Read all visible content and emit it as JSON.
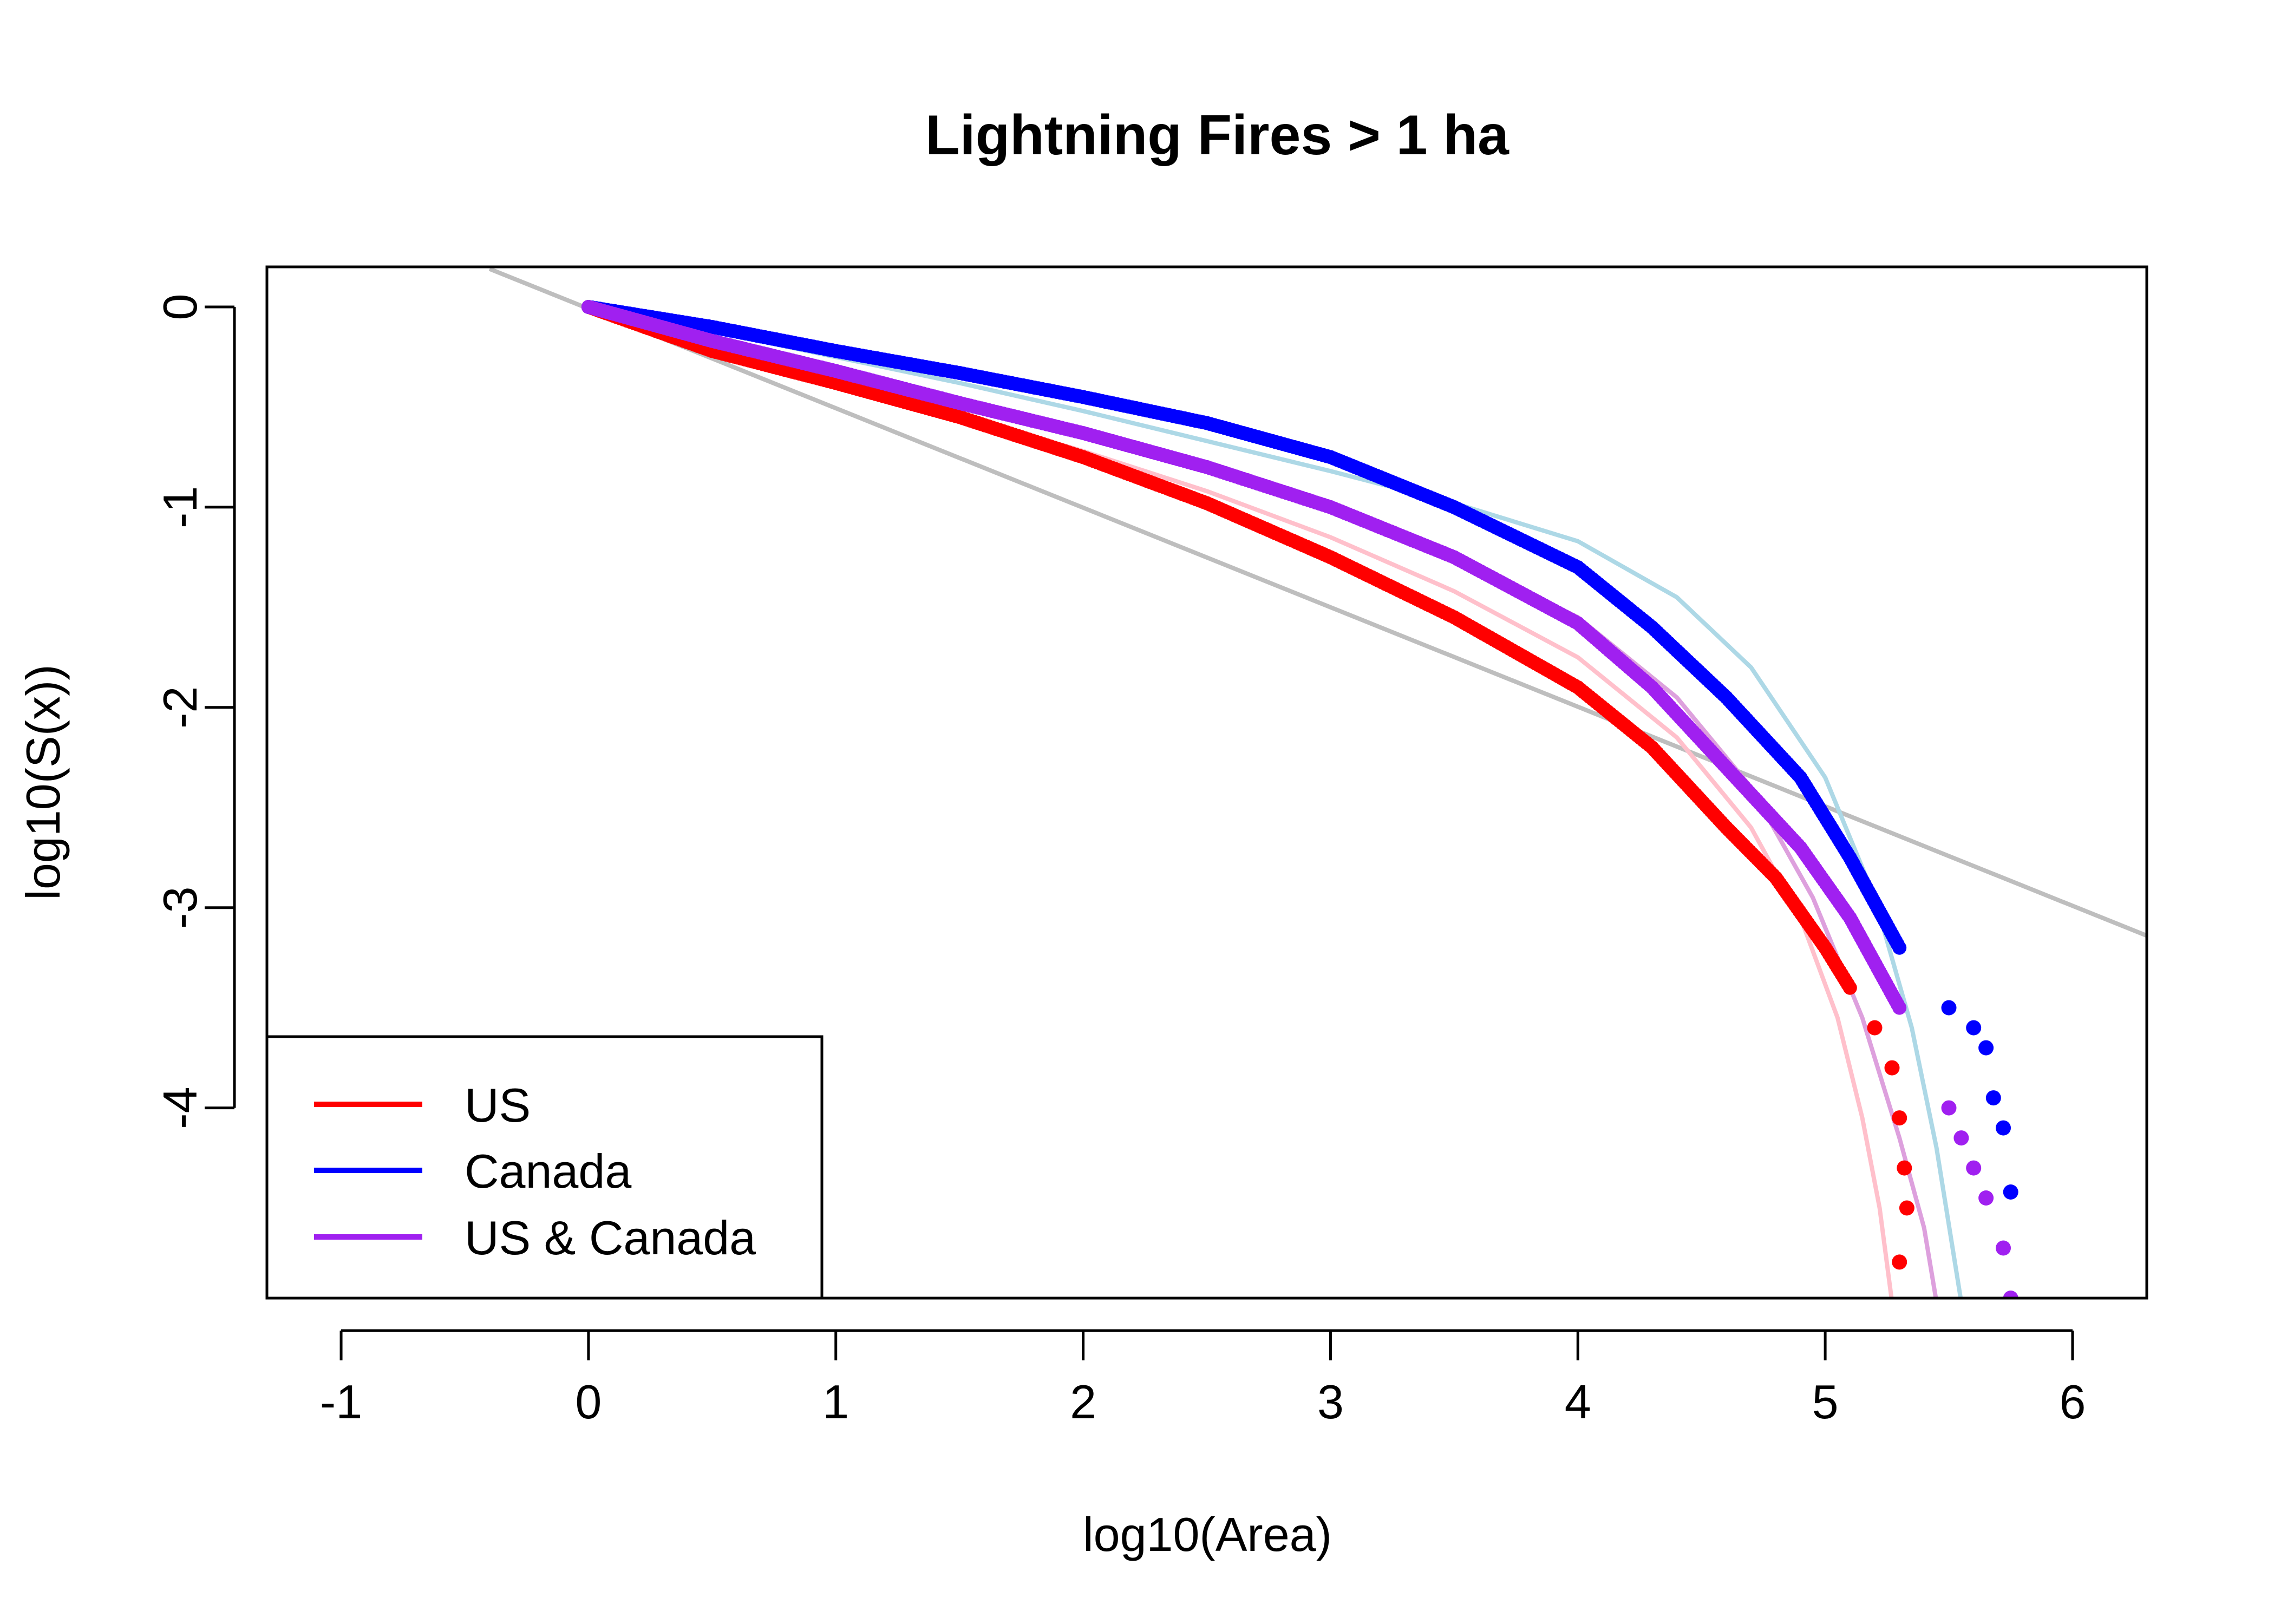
{
  "chart_data": {
    "type": "scatter",
    "title": "Lightning Fires > 1 ha",
    "xlabel": "log10(Area)",
    "ylabel": "log10(S(x))",
    "xlim": [
      -1.3,
      6.3
    ],
    "ylim": [
      -4.95,
      0.2
    ],
    "xticks": [
      -1,
      0,
      1,
      2,
      3,
      4,
      5,
      6
    ],
    "yticks": [
      0,
      -1,
      -2,
      -3,
      -4
    ],
    "legend": {
      "position": "bottom-left",
      "entries": [
        {
          "label": "US",
          "color": "#ff0000"
        },
        {
          "label": "Canada",
          "color": "#0000ff"
        },
        {
          "label": "US & Canada",
          "color": "#a020f0"
        }
      ]
    },
    "reference_line": {
      "color": "#bebebe",
      "points": [
        [
          -0.4,
          0.19
        ],
        [
          6.3,
          -3.14
        ]
      ]
    },
    "series": [
      {
        "name": "US",
        "color": "#ff0000",
        "fit_color": "#ffc0cb",
        "points": [
          [
            0.0,
            0.0
          ],
          [
            0.5,
            -0.22
          ],
          [
            1.0,
            -0.38
          ],
          [
            1.5,
            -0.55
          ],
          [
            2.0,
            -0.75
          ],
          [
            2.5,
            -0.98
          ],
          [
            3.0,
            -1.25
          ],
          [
            3.5,
            -1.55
          ],
          [
            4.0,
            -1.9
          ],
          [
            4.3,
            -2.2
          ],
          [
            4.6,
            -2.6
          ],
          [
            4.8,
            -2.85
          ],
          [
            5.0,
            -3.2
          ],
          [
            5.1,
            -3.4
          ],
          [
            5.2,
            -3.6
          ],
          [
            5.27,
            -3.8
          ],
          [
            5.3,
            -4.05
          ],
          [
            5.32,
            -4.3
          ],
          [
            5.33,
            -4.5
          ],
          [
            5.3,
            -4.77
          ]
        ],
        "fit": [
          [
            0.0,
            0.0
          ],
          [
            0.5,
            -0.2
          ],
          [
            1.0,
            -0.37
          ],
          [
            1.5,
            -0.54
          ],
          [
            2.0,
            -0.72
          ],
          [
            2.5,
            -0.92
          ],
          [
            3.0,
            -1.15
          ],
          [
            3.5,
            -1.42
          ],
          [
            4.0,
            -1.75
          ],
          [
            4.4,
            -2.15
          ],
          [
            4.7,
            -2.6
          ],
          [
            4.9,
            -3.05
          ],
          [
            5.05,
            -3.55
          ],
          [
            5.15,
            -4.05
          ],
          [
            5.22,
            -4.5
          ],
          [
            5.27,
            -4.97
          ]
        ]
      },
      {
        "name": "Canada",
        "color": "#0000ff",
        "fit_color": "#add8e6",
        "points": [
          [
            0.0,
            0.0
          ],
          [
            0.5,
            -0.1
          ],
          [
            1.0,
            -0.22
          ],
          [
            1.5,
            -0.33
          ],
          [
            2.0,
            -0.45
          ],
          [
            2.5,
            -0.58
          ],
          [
            3.0,
            -0.75
          ],
          [
            3.5,
            -1.0
          ],
          [
            4.0,
            -1.3
          ],
          [
            4.3,
            -1.6
          ],
          [
            4.6,
            -1.95
          ],
          [
            4.9,
            -2.35
          ],
          [
            5.1,
            -2.75
          ],
          [
            5.3,
            -3.2
          ],
          [
            5.5,
            -3.5
          ],
          [
            5.6,
            -3.6
          ],
          [
            5.65,
            -3.7
          ],
          [
            5.68,
            -3.95
          ],
          [
            5.72,
            -4.1
          ],
          [
            5.75,
            -4.42
          ]
        ],
        "fit": [
          [
            0.0,
            0.0
          ],
          [
            0.5,
            -0.12
          ],
          [
            1.0,
            -0.25
          ],
          [
            1.5,
            -0.38
          ],
          [
            2.0,
            -0.52
          ],
          [
            2.5,
            -0.67
          ],
          [
            3.0,
            -0.82
          ],
          [
            3.5,
            -0.98
          ],
          [
            4.0,
            -1.17
          ],
          [
            4.4,
            -1.45
          ],
          [
            4.7,
            -1.8
          ],
          [
            5.0,
            -2.35
          ],
          [
            5.2,
            -2.95
          ],
          [
            5.35,
            -3.6
          ],
          [
            5.45,
            -4.2
          ],
          [
            5.55,
            -4.97
          ]
        ]
      },
      {
        "name": "US & Canada",
        "color": "#a020f0",
        "fit_color": "#dda0dd",
        "points": [
          [
            0.0,
            0.0
          ],
          [
            0.5,
            -0.17
          ],
          [
            1.0,
            -0.32
          ],
          [
            1.5,
            -0.48
          ],
          [
            2.0,
            -0.63
          ],
          [
            2.5,
            -0.8
          ],
          [
            3.0,
            -1.0
          ],
          [
            3.5,
            -1.25
          ],
          [
            4.0,
            -1.58
          ],
          [
            4.3,
            -1.9
          ],
          [
            4.6,
            -2.3
          ],
          [
            4.9,
            -2.7
          ],
          [
            5.1,
            -3.05
          ],
          [
            5.3,
            -3.5
          ],
          [
            5.5,
            -4.0
          ],
          [
            5.55,
            -4.15
          ],
          [
            5.6,
            -4.3
          ],
          [
            5.65,
            -4.45
          ],
          [
            5.72,
            -4.7
          ],
          [
            5.75,
            -4.95
          ]
        ],
        "fit": [
          [
            0.0,
            0.0
          ],
          [
            0.5,
            -0.17
          ],
          [
            1.0,
            -0.33
          ],
          [
            1.5,
            -0.48
          ],
          [
            2.0,
            -0.64
          ],
          [
            2.5,
            -0.82
          ],
          [
            3.0,
            -1.02
          ],
          [
            3.5,
            -1.25
          ],
          [
            4.0,
            -1.55
          ],
          [
            4.4,
            -1.95
          ],
          [
            4.7,
            -2.4
          ],
          [
            4.95,
            -2.95
          ],
          [
            5.15,
            -3.55
          ],
          [
            5.3,
            -4.15
          ],
          [
            5.4,
            -4.6
          ],
          [
            5.45,
            -4.97
          ]
        ]
      }
    ]
  }
}
